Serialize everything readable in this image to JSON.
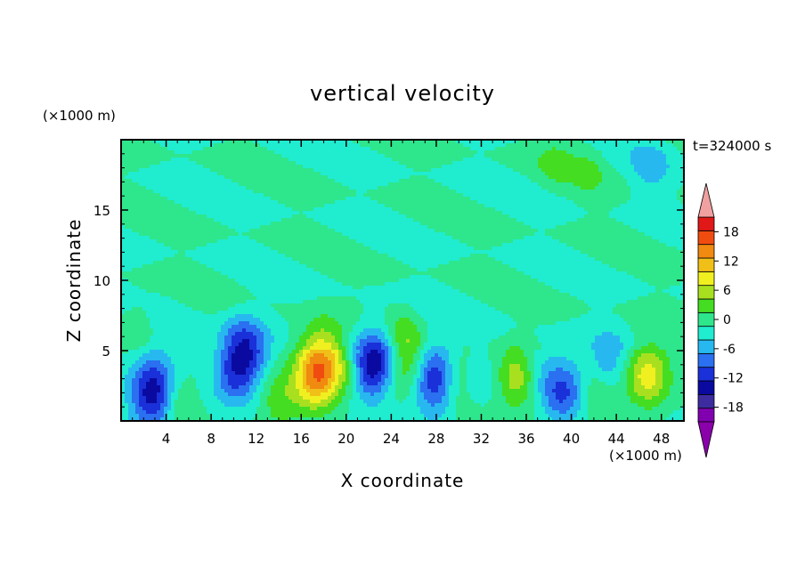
{
  "chart_data": {
    "type": "heatmap",
    "title": "vertical velocity",
    "xlabel": "X coordinate",
    "ylabel": "Z coordinate",
    "x_unit": "(×1000 m)",
    "y_unit": "(×1000 m)",
    "time_label": "t=324000 s",
    "xlim": [
      0,
      50
    ],
    "ylim": [
      0,
      20
    ],
    "x_ticks": [
      4,
      8,
      12,
      16,
      20,
      24,
      28,
      32,
      36,
      40,
      44,
      48
    ],
    "y_ticks": [
      5,
      10,
      15
    ],
    "colorbar": {
      "levels": [
        -21,
        -18,
        -15,
        -12,
        -9,
        -6,
        -3,
        0,
        3,
        6,
        9,
        12,
        15,
        18,
        21
      ],
      "tick_labels": [
        "-18",
        "-12",
        "-6",
        "0",
        "6",
        "12",
        "18"
      ],
      "tick_values": [
        -18,
        -12,
        -6,
        0,
        6,
        12,
        18
      ],
      "colors": [
        "#8000b0",
        "#3c2ca0",
        "#0a0aa0",
        "#1a30d8",
        "#2a70f0",
        "#28b8f0",
        "#20ecd0",
        "#2ee68c",
        "#44dd22",
        "#a8e020",
        "#f0f020",
        "#f0c018",
        "#f08a10",
        "#f04c10",
        "#e01818"
      ],
      "low_extend_color": "#8a00aa",
      "high_extend_color": "#f0a0a0"
    },
    "features": [
      {
        "x": 3.0,
        "z": 1.9,
        "w": -16
      },
      {
        "x": 4.8,
        "z": 1.6,
        "w": 7
      },
      {
        "x": 11.0,
        "z": 5.0,
        "w": -13
      },
      {
        "x": 10.0,
        "z": 3.0,
        "w": -6
      },
      {
        "x": 14.0,
        "z": 1.5,
        "w": 5
      },
      {
        "x": 17.8,
        "z": 4.2,
        "w": 15
      },
      {
        "x": 17.0,
        "z": 2.5,
        "w": 7
      },
      {
        "x": 20.0,
        "z": 3.5,
        "w": 3
      },
      {
        "x": 22.6,
        "z": 4.6,
        "w": -12
      },
      {
        "x": 22.0,
        "z": 3.0,
        "w": -5
      },
      {
        "x": 25.5,
        "z": 4.0,
        "w": 8
      },
      {
        "x": 25.0,
        "z": 6.5,
        "w": 3
      },
      {
        "x": 28.0,
        "z": 3.0,
        "w": -15
      },
      {
        "x": 29.6,
        "z": 3.0,
        "w": 8
      },
      {
        "x": 31.5,
        "z": 3.0,
        "w": -3
      },
      {
        "x": 35.3,
        "z": 3.0,
        "w": 9
      },
      {
        "x": 37.0,
        "z": 3.5,
        "w": -4
      },
      {
        "x": 39.3,
        "z": 2.2,
        "w": -10
      },
      {
        "x": 42.0,
        "z": 2.0,
        "w": 3
      },
      {
        "x": 43.3,
        "z": 4.2,
        "w": -5
      },
      {
        "x": 46.8,
        "z": 3.3,
        "w": 11
      },
      {
        "x": 1.5,
        "z": 7.0,
        "w": 3
      },
      {
        "x": 38.5,
        "z": 18.5,
        "w": 3
      },
      {
        "x": 41.5,
        "z": 18.0,
        "w": 3
      },
      {
        "x": 47.0,
        "z": 18.0,
        "w": -4
      }
    ]
  }
}
